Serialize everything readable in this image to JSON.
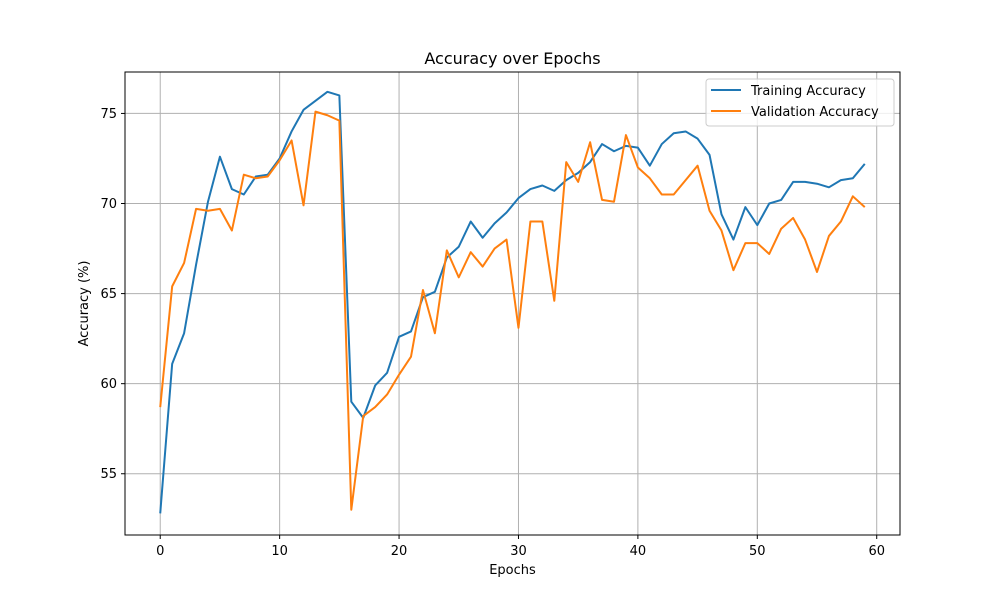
{
  "chart_data": {
    "type": "line",
    "title": "Accuracy over Epochs",
    "xlabel": "Epochs",
    "ylabel": "Accuracy (%)",
    "xlim": [
      -2.95,
      61.95
    ],
    "ylim": [
      51.6,
      77.3
    ],
    "xticks": [
      0,
      10,
      20,
      30,
      40,
      50,
      60
    ],
    "yticks": [
      55,
      60,
      65,
      70,
      75
    ],
    "grid": true,
    "legend_position": "top-right",
    "x": [
      0,
      1,
      2,
      3,
      4,
      5,
      6,
      7,
      8,
      9,
      10,
      11,
      12,
      13,
      14,
      15,
      16,
      17,
      18,
      19,
      20,
      21,
      22,
      23,
      24,
      25,
      26,
      27,
      28,
      29,
      30,
      31,
      32,
      33,
      34,
      35,
      36,
      37,
      38,
      39,
      40,
      41,
      42,
      43,
      44,
      45,
      46,
      47,
      48,
      49,
      50,
      51,
      52,
      53,
      54,
      55,
      56,
      57,
      58,
      59
    ],
    "series": [
      {
        "name": "Training Accuracy",
        "color": "#1f77b4",
        "values": [
          52.8,
          61.1,
          62.8,
          66.6,
          70.1,
          72.6,
          70.8,
          70.5,
          71.5,
          71.6,
          72.5,
          74.0,
          75.2,
          75.7,
          76.2,
          76.0,
          59.0,
          58.1,
          59.9,
          60.6,
          62.6,
          62.9,
          64.8,
          65.1,
          67.0,
          67.6,
          69.0,
          68.1,
          68.9,
          69.5,
          70.3,
          70.8,
          71.0,
          70.7,
          71.3,
          71.7,
          72.3,
          73.3,
          72.9,
          73.2,
          73.1,
          72.1,
          73.3,
          73.9,
          74.0,
          73.6,
          72.7,
          69.4,
          68.0,
          69.8,
          68.8,
          70.0,
          70.2,
          71.2,
          71.2,
          71.1,
          70.9,
          71.3,
          71.4,
          72.2
        ]
      },
      {
        "name": "Validation Accuracy",
        "color": "#ff7f0e",
        "values": [
          58.7,
          65.4,
          66.7,
          69.7,
          69.6,
          69.7,
          68.5,
          71.6,
          71.4,
          71.5,
          72.4,
          73.5,
          69.9,
          75.1,
          74.9,
          74.6,
          53.0,
          58.2,
          58.7,
          59.4,
          60.5,
          61.5,
          65.2,
          62.8,
          67.4,
          65.9,
          67.3,
          66.5,
          67.5,
          68.0,
          63.1,
          69.0,
          69.0,
          64.6,
          72.3,
          71.2,
          73.4,
          70.2,
          70.1,
          73.8,
          72.0,
          71.4,
          70.5,
          70.5,
          71.3,
          72.1,
          69.6,
          68.5,
          66.3,
          67.8,
          67.8,
          67.2,
          68.6,
          69.2,
          68.0,
          66.2,
          68.2,
          69.0,
          70.4,
          69.8
        ]
      }
    ]
  }
}
